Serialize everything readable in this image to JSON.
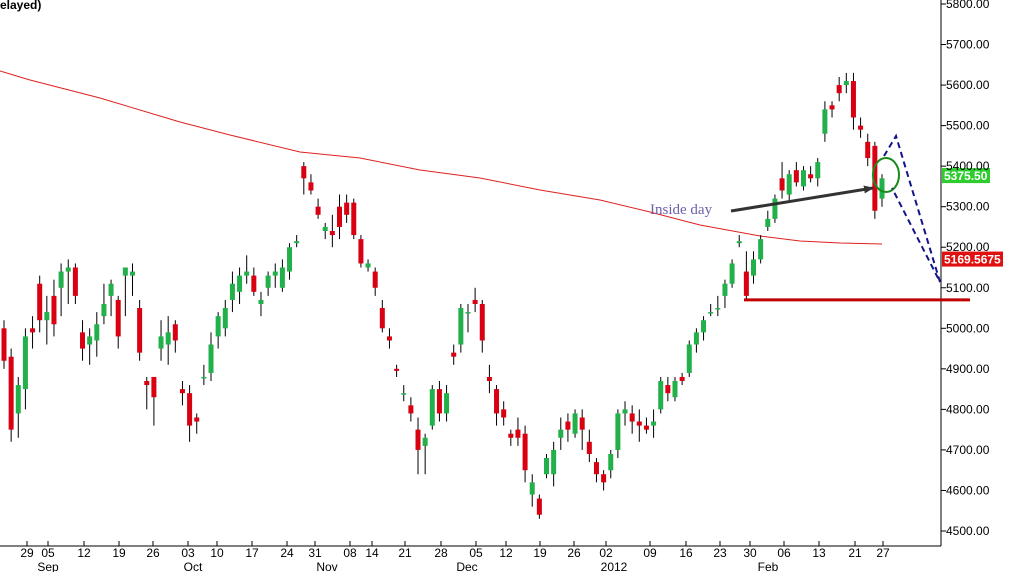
{
  "chart_data": {
    "type": "candlestick",
    "title_fragment": "elayed)",
    "y_axis": {
      "min": 4480,
      "max": 5800,
      "ticks": [
        "5800.00",
        "5700.00",
        "5600.00",
        "5500.00",
        "5400.00",
        "5300.00",
        "5200.00",
        "5100.00",
        "5000.00",
        "4900.00",
        "4800.00",
        "4700.00",
        "4600.00",
        "4500.00"
      ],
      "position": "right"
    },
    "x_axis": {
      "day_labels": [
        "29",
        "05",
        "12",
        "19",
        "26",
        "03",
        "10",
        "17",
        "24",
        "31",
        "08",
        "14",
        "21",
        "28",
        "05",
        "12",
        "19",
        "26",
        "02",
        "09",
        "16",
        "23",
        "30",
        "06",
        "13",
        "21",
        "27"
      ],
      "month_labels": [
        "Sep",
        "Oct",
        "Nov",
        "Dec",
        "2012",
        "Feb"
      ]
    },
    "last_price_label": "5375.50",
    "moving_average_label": "5169.5675",
    "annotations": {
      "inside_day_text": "Inside day",
      "support_level": 5070,
      "projection_target": 5070
    },
    "colors": {
      "up_candle": "#22b04a",
      "down_candle": "#d90012",
      "moving_average": "#e02020",
      "support_line": "#c00000",
      "arrow": "#333333",
      "annotation_text": "#6b5fa8",
      "circle": "#1a8a1a",
      "projection": "#14148a",
      "last_price_bg": "#2ecc2e",
      "ma_label_bg": "#e01010"
    },
    "candles": [
      [
        5000,
        5020,
        4900,
        4920
      ],
      [
        4930,
        4950,
        4720,
        4750
      ],
      [
        4790,
        4880,
        4730,
        4860
      ],
      [
        4850,
        5000,
        4800,
        4980
      ],
      [
        5000,
        5030,
        4950,
        4990
      ],
      [
        5110,
        5130,
        4990,
        5020
      ],
      [
        5020,
        5080,
        4960,
        5040
      ],
      [
        5080,
        5120,
        4980,
        5010
      ],
      [
        5100,
        5160,
        5030,
        5140
      ],
      [
        5140,
        5170,
        5060,
        5150
      ],
      [
        5150,
        5160,
        5060,
        5080
      ],
      [
        4990,
        5020,
        4920,
        4950
      ],
      [
        4960,
        5000,
        4910,
        4980
      ],
      [
        4970,
        5040,
        4930,
        5010
      ],
      [
        5030,
        5110,
        5010,
        5060
      ],
      [
        5080,
        5120,
        5030,
        5110
      ],
      [
        5070,
        5080,
        4950,
        4980
      ],
      [
        5130,
        5150,
        5030,
        5150
      ],
      [
        5130,
        5160,
        5080,
        5140
      ],
      [
        5050,
        5070,
        4920,
        4940
      ],
      [
        4870,
        4880,
        4800,
        4860
      ],
      [
        4880,
        4880,
        4760,
        4830
      ],
      [
        4950,
        5020,
        4920,
        4980
      ],
      [
        4960,
        5030,
        4910,
        4990
      ],
      [
        5010,
        5020,
        4940,
        4970
      ],
      [
        4850,
        4870,
        4810,
        4840
      ],
      [
        4840,
        4860,
        4720,
        4760
      ],
      [
        4780,
        4790,
        4740,
        4770
      ],
      [
        4880,
        4910,
        4860,
        4880
      ],
      [
        4890,
        4990,
        4870,
        4960
      ],
      [
        4980,
        5040,
        4950,
        5030
      ],
      [
        5000,
        5070,
        4980,
        5050
      ],
      [
        5070,
        5140,
        5040,
        5110
      ],
      [
        5090,
        5150,
        5060,
        5130
      ],
      [
        5130,
        5180,
        5110,
        5140
      ],
      [
        5130,
        5150,
        5080,
        5090
      ],
      [
        5060,
        5090,
        5030,
        5070
      ],
      [
        5100,
        5140,
        5080,
        5130
      ],
      [
        5130,
        5160,
        5100,
        5140
      ],
      [
        5100,
        5170,
        5090,
        5150
      ],
      [
        5140,
        5210,
        5120,
        5200
      ],
      [
        5210,
        5230,
        5200,
        5215
      ],
      [
        5400,
        5410,
        5330,
        5370
      ],
      [
        5360,
        5380,
        5330,
        5340
      ],
      [
        5300,
        5320,
        5270,
        5280
      ],
      [
        5240,
        5260,
        5220,
        5250
      ],
      [
        5240,
        5280,
        5200,
        5230
      ],
      [
        5300,
        5330,
        5220,
        5250
      ],
      [
        5310,
        5330,
        5260,
        5280
      ],
      [
        5310,
        5320,
        5220,
        5230
      ],
      [
        5220,
        5230,
        5150,
        5160
      ],
      [
        5150,
        5170,
        5140,
        5160
      ],
      [
        5140,
        5150,
        5080,
        5100
      ],
      [
        5050,
        5070,
        4990,
        5000
      ],
      [
        4980,
        5000,
        4950,
        4970
      ],
      [
        4900,
        4910,
        4880,
        4895
      ],
      [
        4840,
        4860,
        4820,
        4840
      ],
      [
        4810,
        4830,
        4770,
        4790
      ],
      [
        4750,
        4780,
        4640,
        4700
      ],
      [
        4710,
        4740,
        4640,
        4730
      ],
      [
        4760,
        4860,
        4750,
        4850
      ],
      [
        4850,
        4870,
        4770,
        4790
      ],
      [
        4790,
        4860,
        4770,
        4840
      ],
      [
        4940,
        4960,
        4910,
        4930
      ],
      [
        4960,
        5060,
        4940,
        5050
      ],
      [
        5040,
        5060,
        4990,
        5040
      ],
      [
        5070,
        5100,
        5040,
        5060
      ],
      [
        5060,
        5070,
        4940,
        4970
      ],
      [
        4880,
        4910,
        4840,
        4870
      ],
      [
        4850,
        4860,
        4760,
        4790
      ],
      [
        4800,
        4820,
        4760,
        4780
      ],
      [
        4740,
        4750,
        4710,
        4730
      ],
      [
        4750,
        4780,
        4710,
        4730
      ],
      [
        4740,
        4760,
        4620,
        4650
      ],
      [
        4590,
        4640,
        4560,
        4620
      ],
      [
        4580,
        4590,
        4530,
        4540
      ],
      [
        4640,
        4690,
        4630,
        4680
      ],
      [
        4640,
        4720,
        4610,
        4700
      ],
      [
        4730,
        4780,
        4700,
        4750
      ],
      [
        4770,
        4790,
        4720,
        4750
      ],
      [
        4740,
        4800,
        4730,
        4790
      ],
      [
        4780,
        4800,
        4700,
        4750
      ],
      [
        4720,
        4750,
        4670,
        4690
      ],
      [
        4670,
        4680,
        4620,
        4640
      ],
      [
        4640,
        4650,
        4600,
        4620
      ],
      [
        4650,
        4700,
        4630,
        4690
      ],
      [
        4700,
        4800,
        4680,
        4790
      ],
      [
        4790,
        4820,
        4760,
        4800
      ],
      [
        4790,
        4810,
        4740,
        4770
      ],
      [
        4770,
        4800,
        4720,
        4760
      ],
      [
        4760,
        4780,
        4740,
        4750
      ],
      [
        4760,
        4800,
        4730,
        4770
      ],
      [
        4800,
        4880,
        4790,
        4870
      ],
      [
        4860,
        4880,
        4820,
        4840
      ],
      [
        4830,
        4880,
        4820,
        4870
      ],
      [
        4880,
        4890,
        4860,
        4870
      ],
      [
        4890,
        4970,
        4880,
        4960
      ],
      [
        4960,
        5000,
        4940,
        4990
      ],
      [
        4990,
        5030,
        4970,
        5020
      ],
      [
        5040,
        5060,
        5030,
        5040
      ],
      [
        5050,
        5080,
        5030,
        5050
      ],
      [
        5080,
        5120,
        5050,
        5110
      ],
      [
        5110,
        5170,
        5100,
        5160
      ],
      [
        5210,
        5230,
        5200,
        5215
      ],
      [
        5140,
        5190,
        5070,
        5080
      ],
      [
        5130,
        5190,
        5110,
        5170
      ],
      [
        5170,
        5230,
        5160,
        5220
      ],
      [
        5250,
        5290,
        5240,
        5270
      ],
      [
        5270,
        5330,
        5260,
        5320
      ],
      [
        5370,
        5410,
        5320,
        5340
      ],
      [
        5330,
        5390,
        5310,
        5380
      ],
      [
        5390,
        5410,
        5350,
        5360
      ],
      [
        5350,
        5400,
        5340,
        5390
      ],
      [
        5380,
        5400,
        5360,
        5370
      ],
      [
        5370,
        5420,
        5350,
        5410
      ],
      [
        5480,
        5560,
        5460,
        5540
      ],
      [
        5550,
        5560,
        5520,
        5540
      ],
      [
        5600,
        5620,
        5560,
        5580
      ],
      [
        5600,
        5630,
        5580,
        5610
      ],
      [
        5610,
        5630,
        5490,
        5520
      ],
      [
        5500,
        5520,
        5470,
        5490
      ],
      [
        5460,
        5480,
        5400,
        5420
      ],
      [
        5450,
        5460,
        5270,
        5290
      ],
      [
        5320,
        5380,
        5300,
        5370
      ]
    ]
  }
}
